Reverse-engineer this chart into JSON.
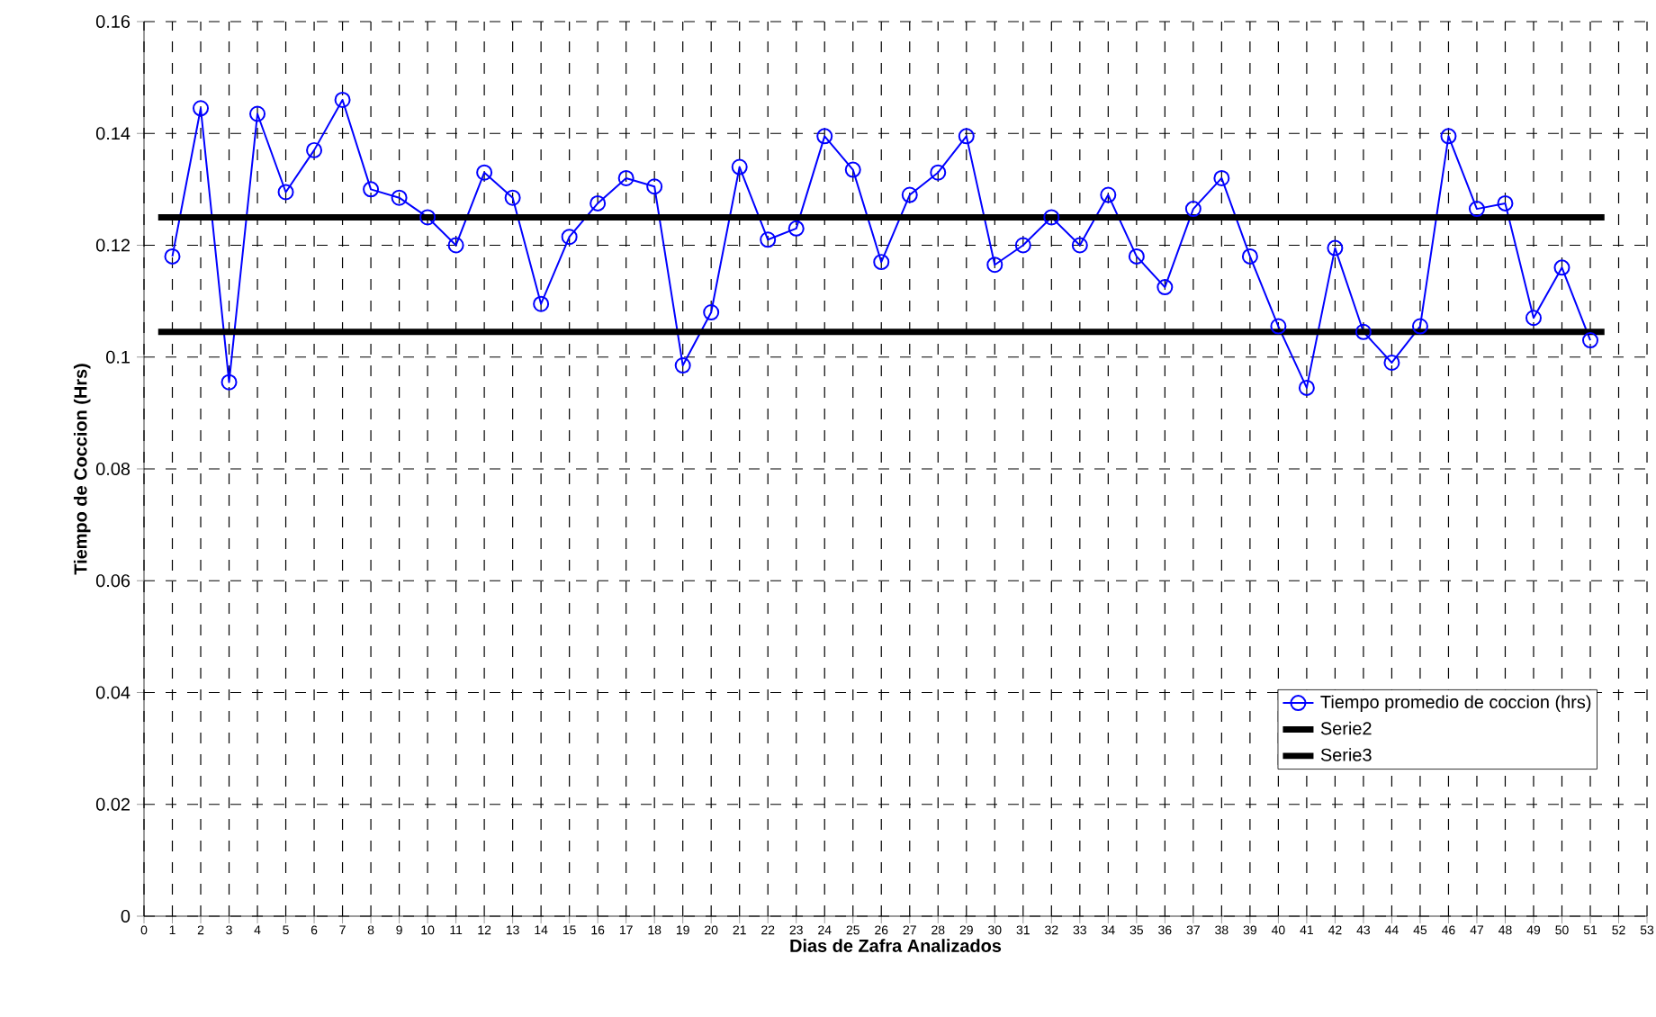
{
  "chart_data": {
    "type": "line",
    "xlabel": "Dias de Zafra Analizados",
    "ylabel": "Tiempo de Coccion (Hrs)",
    "xlim": [
      0,
      53
    ],
    "ylim": [
      0,
      0.16
    ],
    "xticks": [
      0,
      1,
      2,
      3,
      4,
      5,
      6,
      7,
      8,
      9,
      10,
      11,
      12,
      13,
      14,
      15,
      16,
      17,
      18,
      19,
      20,
      21,
      22,
      23,
      24,
      25,
      26,
      27,
      28,
      29,
      30,
      31,
      32,
      33,
      34,
      35,
      36,
      37,
      38,
      39,
      40,
      41,
      42,
      43,
      44,
      45,
      46,
      47,
      48,
      49,
      50,
      51,
      52,
      53
    ],
    "yticks": [
      0,
      0.02,
      0.04,
      0.06,
      0.08,
      0.1,
      0.12,
      0.14,
      0.16
    ],
    "grid": true,
    "legend": "bottom right",
    "marker": "circle",
    "line_style": "solid",
    "series": [
      {
        "name": "Tiempo promedio de coccion (hrs)",
        "color": "#0000ff",
        "x": [
          1,
          2,
          3,
          4,
          5,
          6,
          7,
          8,
          9,
          10,
          11,
          12,
          13,
          14,
          15,
          16,
          17,
          18,
          19,
          20,
          21,
          22,
          23,
          24,
          25,
          26,
          27,
          28,
          29,
          30,
          31,
          32,
          33,
          34,
          35,
          36,
          37,
          38,
          39,
          40,
          41,
          42,
          43,
          44,
          45,
          46,
          47,
          48,
          49,
          50,
          51
        ],
        "values": [
          0.118,
          0.1445,
          0.0955,
          0.1435,
          0.1295,
          0.137,
          0.146,
          0.13,
          0.1285,
          0.125,
          0.12,
          0.133,
          0.1285,
          0.1095,
          0.1215,
          0.1275,
          0.132,
          0.1305,
          0.0985,
          0.108,
          0.134,
          0.121,
          0.123,
          0.1395,
          0.1335,
          0.117,
          0.129,
          0.133,
          0.1395,
          0.1165,
          0.12,
          0.125,
          0.12,
          0.129,
          0.118,
          0.1125,
          0.1265,
          0.132,
          0.118,
          0.1055,
          0.0945,
          0.1195,
          0.1045,
          0.099,
          0.1055,
          0.1395,
          0.1265,
          0.1275,
          0.107,
          0.116,
          0.103
        ]
      },
      {
        "name": "Serie2",
        "color": "#000000",
        "marker": "none",
        "x": [
          0.5,
          51.5
        ],
        "values": [
          0.125,
          0.125
        ]
      },
      {
        "name": "Serie3",
        "color": "#000000",
        "marker": "none",
        "x": [
          0.5,
          51.5
        ],
        "values": [
          0.1045,
          0.1045
        ]
      }
    ]
  }
}
